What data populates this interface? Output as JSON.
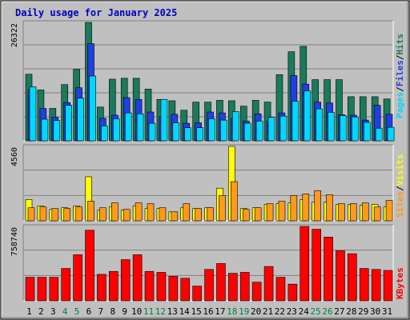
{
  "chart_data": [
    {
      "type": "bar",
      "title": "Daily usage for January 2025",
      "panel": "top",
      "y_label_max": "26322",
      "ylim": [
        0,
        26322
      ],
      "categories": [
        "1",
        "2",
        "3",
        "4",
        "5",
        "6",
        "7",
        "8",
        "9",
        "10",
        "11",
        "12",
        "13",
        "14",
        "15",
        "16",
        "17",
        "18",
        "19",
        "20",
        "21",
        "22",
        "23",
        "24",
        "25",
        "26",
        "27",
        "28",
        "29",
        "30",
        "31"
      ],
      "weekend_days": [
        "4",
        "5",
        "11",
        "12",
        "18",
        "19",
        "25",
        "26"
      ],
      "legend": [
        "Pages",
        "Files",
        "Hits"
      ],
      "legend_separator": "/",
      "series": [
        {
          "name": "Hits",
          "color": "#1a7a5c",
          "values": [
            14800,
            11300,
            7200,
            12500,
            15900,
            26322,
            7500,
            13700,
            13900,
            13900,
            11500,
            9200,
            8900,
            6800,
            8600,
            8600,
            9000,
            8900,
            7700,
            9000,
            8600,
            14700,
            19800,
            21000,
            13600,
            13600,
            13600,
            9800,
            9800,
            9800,
            9300
          ]
        },
        {
          "name": "Files",
          "color": "#2040e0",
          "values": [
            11300,
            7200,
            5200,
            8500,
            11800,
            21600,
            5000,
            5700,
            9600,
            9200,
            6400,
            5400,
            5900,
            3900,
            4000,
            6400,
            6200,
            5000,
            4400,
            6000,
            4400,
            6200,
            14500,
            12600,
            8600,
            8400,
            5800,
            5700,
            4600,
            7900,
            5900
          ]
        },
        {
          "name": "Pages",
          "color": "#00d8ff",
          "values": [
            12000,
            4800,
            4500,
            7900,
            9500,
            14400,
            3300,
            4900,
            6200,
            6000,
            3900,
            9200,
            4000,
            2900,
            2900,
            4900,
            4600,
            6500,
            3900,
            4400,
            5200,
            5500,
            8800,
            11100,
            7100,
            6300,
            5600,
            5300,
            4100,
            2800,
            3000
          ]
        }
      ]
    },
    {
      "type": "bar",
      "panel": "middle",
      "y_label_max": "4560",
      "ylim": [
        0,
        4560
      ],
      "categories": [
        "1",
        "2",
        "3",
        "4",
        "5",
        "6",
        "7",
        "8",
        "9",
        "10",
        "11",
        "12",
        "13",
        "14",
        "15",
        "16",
        "17",
        "18",
        "19",
        "20",
        "21",
        "22",
        "23",
        "24",
        "25",
        "26",
        "27",
        "28",
        "29",
        "30",
        "31"
      ],
      "legend": [
        "Sites",
        "Visits"
      ],
      "legend_separator": "/",
      "series": [
        {
          "name": "Visits",
          "color": "#ffff00",
          "values": [
            1300,
            900,
            700,
            800,
            900,
            2700,
            650,
            850,
            650,
            900,
            750,
            750,
            550,
            800,
            750,
            800,
            2000,
            4560,
            750,
            800,
            1000,
            1050,
            1100,
            1300,
            1150,
            1150,
            1000,
            1000,
            950,
            1000,
            850
          ]
        },
        {
          "name": "Sites",
          "color": "#ff9a1a",
          "values": [
            800,
            850,
            750,
            750,
            850,
            1200,
            800,
            1100,
            700,
            1100,
            1050,
            800,
            550,
            1050,
            750,
            800,
            1550,
            2400,
            700,
            800,
            1050,
            1200,
            1550,
            1650,
            1850,
            1600,
            1050,
            1050,
            1100,
            850,
            1250
          ]
        }
      ]
    },
    {
      "type": "bar",
      "panel": "bottom",
      "y_label_max": "758740",
      "ylim": [
        0,
        758740
      ],
      "categories": [
        "1",
        "2",
        "3",
        "4",
        "5",
        "6",
        "7",
        "8",
        "9",
        "10",
        "11",
        "12",
        "13",
        "14",
        "15",
        "16",
        "17",
        "18",
        "19",
        "20",
        "21",
        "22",
        "23",
        "24",
        "25",
        "26",
        "27",
        "28",
        "29",
        "30",
        "31"
      ],
      "legend": [
        "KBytes"
      ],
      "series": [
        {
          "name": "KBytes",
          "color": "#ff0000",
          "values": [
            240000,
            240000,
            240000,
            330000,
            470000,
            720000,
            270000,
            300000,
            420000,
            470000,
            300000,
            290000,
            250000,
            230000,
            150000,
            320000,
            380000,
            280000,
            290000,
            190000,
            350000,
            240000,
            170000,
            758740,
            730000,
            650000,
            510000,
            480000,
            330000,
            320000,
            310000
          ]
        }
      ]
    }
  ]
}
